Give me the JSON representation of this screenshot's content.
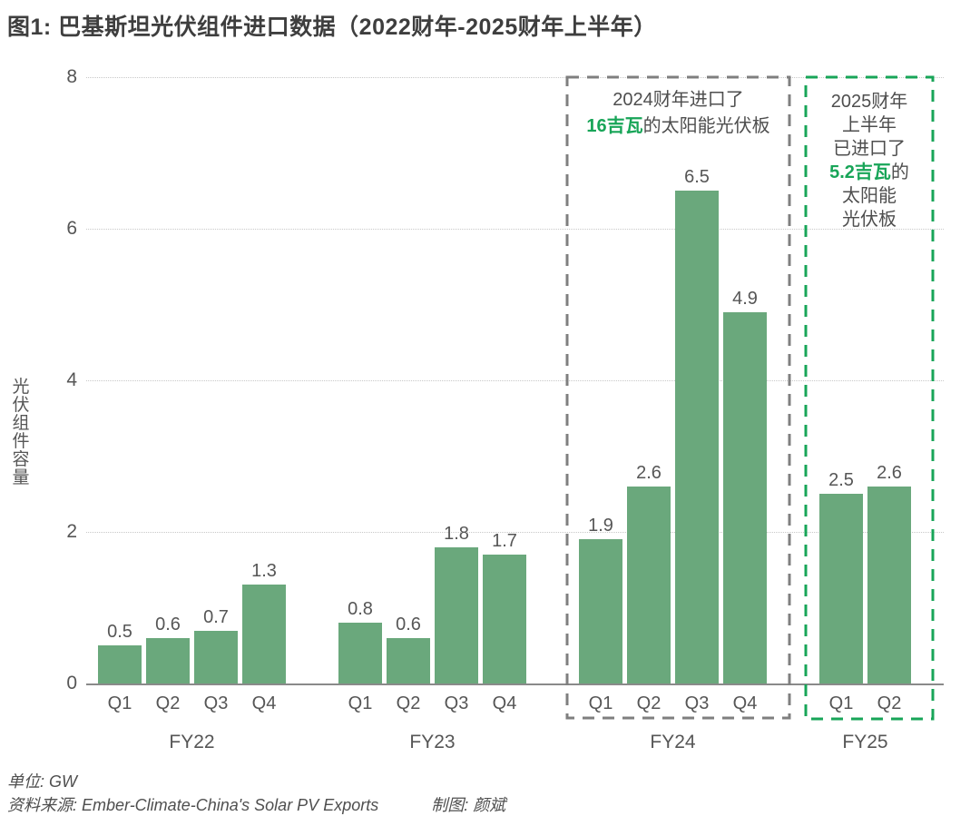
{
  "chart_data": {
    "type": "bar",
    "title": "图1: 巴基斯坦光伏组件进口数据（2022财年-2025财年上半年）",
    "ylabel": "光伏组件容量",
    "unit": "GW",
    "ylim": [
      0,
      8
    ],
    "yticks": [
      0,
      2,
      4,
      6,
      8
    ],
    "grid_values": [
      2,
      4,
      6,
      8
    ],
    "grid": true,
    "legend": "none",
    "groups": [
      {
        "label": "FY22",
        "categories": [
          "Q1",
          "Q2",
          "Q3",
          "Q4"
        ],
        "values": [
          0.5,
          0.6,
          0.7,
          1.3
        ]
      },
      {
        "label": "FY23",
        "categories": [
          "Q1",
          "Q2",
          "Q3",
          "Q4"
        ],
        "values": [
          0.8,
          0.6,
          1.8,
          1.7
        ]
      },
      {
        "label": "FY24",
        "categories": [
          "Q1",
          "Q2",
          "Q3",
          "Q4"
        ],
        "values": [
          1.9,
          2.6,
          6.5,
          4.9
        ],
        "box_style": "gray-dashed",
        "annotation_lines": [
          [
            {
              "t": "2024财年进口了",
              "hl": false
            }
          ],
          [
            {
              "t": "16吉瓦",
              "hl": true
            },
            {
              "t": "的太阳能光伏板",
              "hl": false
            }
          ]
        ]
      },
      {
        "label": "FY25",
        "categories": [
          "Q1",
          "Q2"
        ],
        "values": [
          2.5,
          2.6
        ],
        "box_style": "green-dashed",
        "annotation_lines": [
          [
            {
              "t": "2025财年",
              "hl": false
            }
          ],
          [
            {
              "t": "上半年",
              "hl": false
            }
          ],
          [
            {
              "t": "已进口了",
              "hl": false
            }
          ],
          [
            {
              "t": "5.2吉瓦",
              "hl": true
            },
            {
              "t": "的",
              "hl": false
            }
          ],
          [
            {
              "t": "太阳能",
              "hl": false
            }
          ],
          [
            {
              "t": "光伏板",
              "hl": false
            }
          ]
        ]
      }
    ],
    "colors": {
      "bar": "#6aa87c",
      "accent_green": "#18a558",
      "gray_dash": "#7f7f7f",
      "axis": "#8a8a8a",
      "grid": "#c8c8c8",
      "text": "#565656"
    }
  },
  "footer": {
    "unit_label": "单位: GW",
    "source_label": "资料来源: Ember-Climate-China's Solar PV Exports",
    "credit_label": "制图: 颜斌"
  }
}
